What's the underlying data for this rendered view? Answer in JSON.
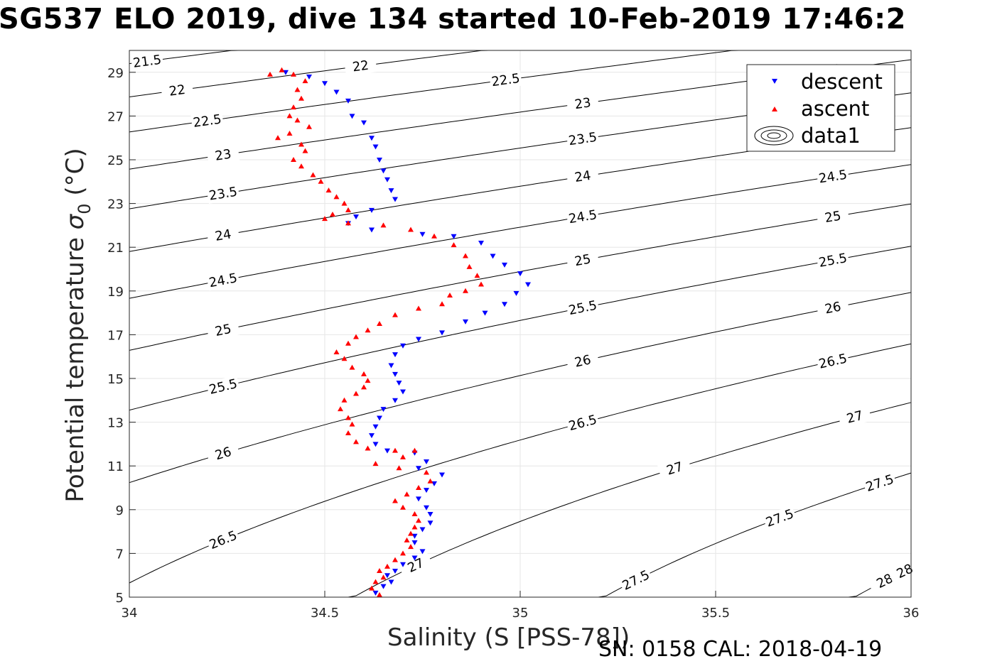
{
  "chart_data": {
    "type": "scatter",
    "title": "SG537 ELO 2019, dive 134 started 10-Feb-2019 17:46:2",
    "xlabel": "Salinity (S [PSS-78])",
    "ylabel_main": "Potential temperature ",
    "ylabel_symbol": "σ",
    "ylabel_sub": "0",
    "ylabel_unit": " (°C)",
    "footer": "SN: 0158  CAL: 2018-04-19",
    "xlim": [
      34,
      36
    ],
    "ylim": [
      5,
      30
    ],
    "xticks": [
      "34",
      "34.5",
      "35",
      "35.5",
      "36"
    ],
    "yticks": [
      "5",
      "7",
      "9",
      "11",
      "13",
      "15",
      "17",
      "19",
      "21",
      "23",
      "25",
      "27",
      "29"
    ],
    "grid": true,
    "legend_position": "top-right",
    "legend": [
      "descent",
      "ascent",
      "data1"
    ],
    "isopycnals": [
      21.5,
      22,
      22.5,
      23,
      23.5,
      24,
      24.5,
      25,
      25.5,
      26,
      26.5,
      27,
      27.5,
      28
    ],
    "series": [
      {
        "name": "descent",
        "color": "#0000ff",
        "marker": "triangle-down",
        "points": [
          [
            34.4,
            29.0
          ],
          [
            34.46,
            28.8
          ],
          [
            34.5,
            28.5
          ],
          [
            34.53,
            28.1
          ],
          [
            34.56,
            27.7
          ],
          [
            34.57,
            27.0
          ],
          [
            34.6,
            26.7
          ],
          [
            34.62,
            26.0
          ],
          [
            34.63,
            25.6
          ],
          [
            34.64,
            25.0
          ],
          [
            34.65,
            24.5
          ],
          [
            34.66,
            24.1
          ],
          [
            34.67,
            23.6
          ],
          [
            34.68,
            23.2
          ],
          [
            34.62,
            22.7
          ],
          [
            34.58,
            22.4
          ],
          [
            34.56,
            22.1
          ],
          [
            34.62,
            21.8
          ],
          [
            34.75,
            21.6
          ],
          [
            34.83,
            21.5
          ],
          [
            34.9,
            21.2
          ],
          [
            34.93,
            20.6
          ],
          [
            34.96,
            20.2
          ],
          [
            35.0,
            19.8
          ],
          [
            35.02,
            19.3
          ],
          [
            34.99,
            18.9
          ],
          [
            34.96,
            18.4
          ],
          [
            34.91,
            18.0
          ],
          [
            34.86,
            17.6
          ],
          [
            34.8,
            17.1
          ],
          [
            34.74,
            16.8
          ],
          [
            34.7,
            16.5
          ],
          [
            34.68,
            16.1
          ],
          [
            34.67,
            15.6
          ],
          [
            34.68,
            15.2
          ],
          [
            34.69,
            14.8
          ],
          [
            34.7,
            14.4
          ],
          [
            34.68,
            14.0
          ],
          [
            34.65,
            13.6
          ],
          [
            34.64,
            13.2
          ],
          [
            34.63,
            12.8
          ],
          [
            34.62,
            12.4
          ],
          [
            34.63,
            12.0
          ],
          [
            34.66,
            11.7
          ],
          [
            34.73,
            11.6
          ],
          [
            34.76,
            11.2
          ],
          [
            34.74,
            10.9
          ],
          [
            34.8,
            10.6
          ],
          [
            34.78,
            10.2
          ],
          [
            34.76,
            9.9
          ],
          [
            34.74,
            9.5
          ],
          [
            34.76,
            9.1
          ],
          [
            34.77,
            8.8
          ],
          [
            34.77,
            8.4
          ],
          [
            34.75,
            8.1
          ],
          [
            34.73,
            7.8
          ],
          [
            34.73,
            7.5
          ],
          [
            34.75,
            7.1
          ],
          [
            34.73,
            6.8
          ],
          [
            34.7,
            6.5
          ],
          [
            34.68,
            6.2
          ],
          [
            34.66,
            6.0
          ],
          [
            34.67,
            5.7
          ],
          [
            34.65,
            5.5
          ],
          [
            34.63,
            5.2
          ]
        ]
      },
      {
        "name": "ascent",
        "color": "#ff0000",
        "marker": "triangle-up",
        "points": [
          [
            34.36,
            28.9
          ],
          [
            34.39,
            29.1
          ],
          [
            34.42,
            28.9
          ],
          [
            34.45,
            28.6
          ],
          [
            34.43,
            28.2
          ],
          [
            34.44,
            27.8
          ],
          [
            34.42,
            27.4
          ],
          [
            34.41,
            27.0
          ],
          [
            34.43,
            26.8
          ],
          [
            34.46,
            26.5
          ],
          [
            34.41,
            26.2
          ],
          [
            34.38,
            26.0
          ],
          [
            34.44,
            25.7
          ],
          [
            34.45,
            25.4
          ],
          [
            34.42,
            25.0
          ],
          [
            34.44,
            24.7
          ],
          [
            34.47,
            24.3
          ],
          [
            34.49,
            24.0
          ],
          [
            34.51,
            23.6
          ],
          [
            34.53,
            23.3
          ],
          [
            34.55,
            23.0
          ],
          [
            34.56,
            22.7
          ],
          [
            34.52,
            22.5
          ],
          [
            34.5,
            22.3
          ],
          [
            34.56,
            22.1
          ],
          [
            34.65,
            22.0
          ],
          [
            34.72,
            21.8
          ],
          [
            34.78,
            21.5
          ],
          [
            34.83,
            21.1
          ],
          [
            34.86,
            20.6
          ],
          [
            34.87,
            20.1
          ],
          [
            34.89,
            19.7
          ],
          [
            34.9,
            19.3
          ],
          [
            34.86,
            19.0
          ],
          [
            34.82,
            18.8
          ],
          [
            34.8,
            18.4
          ],
          [
            34.74,
            18.2
          ],
          [
            34.68,
            17.9
          ],
          [
            34.64,
            17.5
          ],
          [
            34.61,
            17.2
          ],
          [
            34.58,
            16.9
          ],
          [
            34.56,
            16.6
          ],
          [
            34.53,
            16.2
          ],
          [
            34.55,
            15.9
          ],
          [
            34.57,
            15.5
          ],
          [
            34.6,
            15.2
          ],
          [
            34.61,
            14.9
          ],
          [
            34.6,
            14.6
          ],
          [
            34.58,
            14.3
          ],
          [
            34.55,
            14.0
          ],
          [
            34.54,
            13.6
          ],
          [
            34.56,
            13.2
          ],
          [
            34.57,
            12.9
          ],
          [
            34.56,
            12.5
          ],
          [
            34.58,
            12.1
          ],
          [
            34.61,
            11.8
          ],
          [
            34.68,
            11.7
          ],
          [
            34.73,
            11.7
          ],
          [
            34.7,
            11.4
          ],
          [
            34.63,
            11.1
          ],
          [
            34.69,
            10.9
          ],
          [
            34.76,
            10.7
          ],
          [
            34.77,
            10.3
          ],
          [
            34.74,
            10.0
          ],
          [
            34.71,
            9.7
          ],
          [
            34.68,
            9.4
          ],
          [
            34.7,
            9.1
          ],
          [
            34.73,
            8.8
          ],
          [
            34.74,
            8.5
          ],
          [
            34.73,
            8.2
          ],
          [
            34.72,
            7.9
          ],
          [
            34.71,
            7.6
          ],
          [
            34.72,
            7.3
          ],
          [
            34.7,
            7.0
          ],
          [
            34.68,
            6.7
          ],
          [
            34.66,
            6.4
          ],
          [
            34.64,
            6.2
          ],
          [
            34.65,
            5.9
          ],
          [
            34.63,
            5.7
          ],
          [
            34.62,
            5.4
          ],
          [
            34.64,
            5.1
          ]
        ]
      }
    ]
  }
}
